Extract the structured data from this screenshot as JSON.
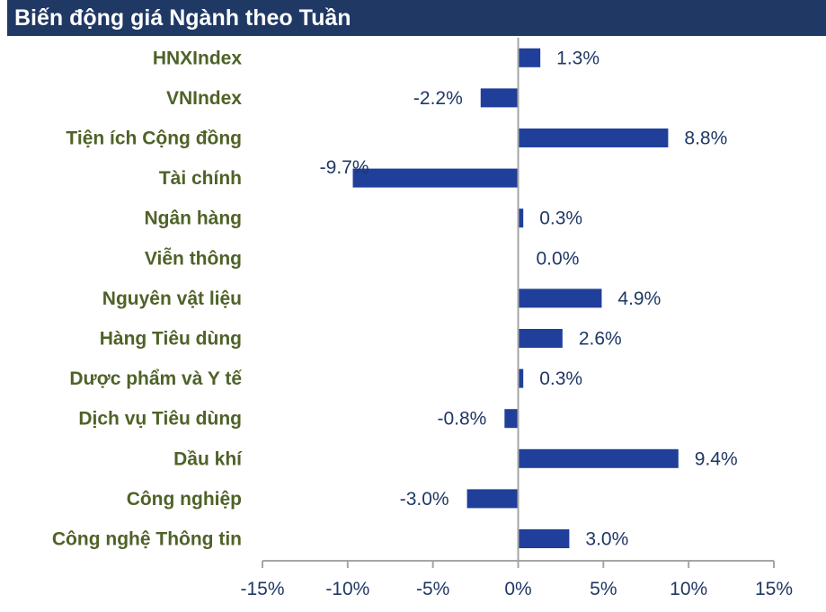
{
  "title": "Biến động giá Ngành theo Tuần",
  "colors": {
    "bar": "#1f3f9a",
    "title_bg": "#1f3864",
    "category_text": "#4f6228",
    "value_text": "#1f3864",
    "axis": "#a6a6a6"
  },
  "chart_data": {
    "type": "bar",
    "orientation": "horizontal",
    "title": "Biến động giá Ngành theo Tuần",
    "categories": [
      "HNXIndex",
      "VNIndex",
      "Tiện ích Cộng đồng",
      "Tài chính",
      "Ngân hàng",
      "Viễn thông",
      "Nguyên vật liệu",
      "Hàng Tiêu dùng",
      "Dược phẩm và Y tế",
      "Dịch vụ Tiêu dùng",
      "Dầu khí",
      "Công nghiệp",
      "Công nghệ Thông tin"
    ],
    "values": [
      1.3,
      -2.2,
      8.8,
      -9.7,
      0.3,
      0.0,
      4.9,
      2.6,
      0.3,
      -0.8,
      9.4,
      -3.0,
      3.0
    ],
    "value_labels": [
      "1.3%",
      "-2.2%",
      "8.8%",
      "-9.7%",
      "0.3%",
      "0.0%",
      "4.9%",
      "2.6%",
      "0.3%",
      "-0.8%",
      "9.4%",
      "-3.0%",
      "3.0%"
    ],
    "xlim": [
      -15,
      15
    ],
    "x_ticks": [
      -15,
      -10,
      -5,
      0,
      5,
      10,
      15
    ],
    "x_tick_labels": [
      "-15%",
      "-10%",
      "-5%",
      "0%",
      "5%",
      "10%",
      "15%"
    ],
    "xlabel": "",
    "ylabel": "",
    "grid": false,
    "legend": "none"
  }
}
